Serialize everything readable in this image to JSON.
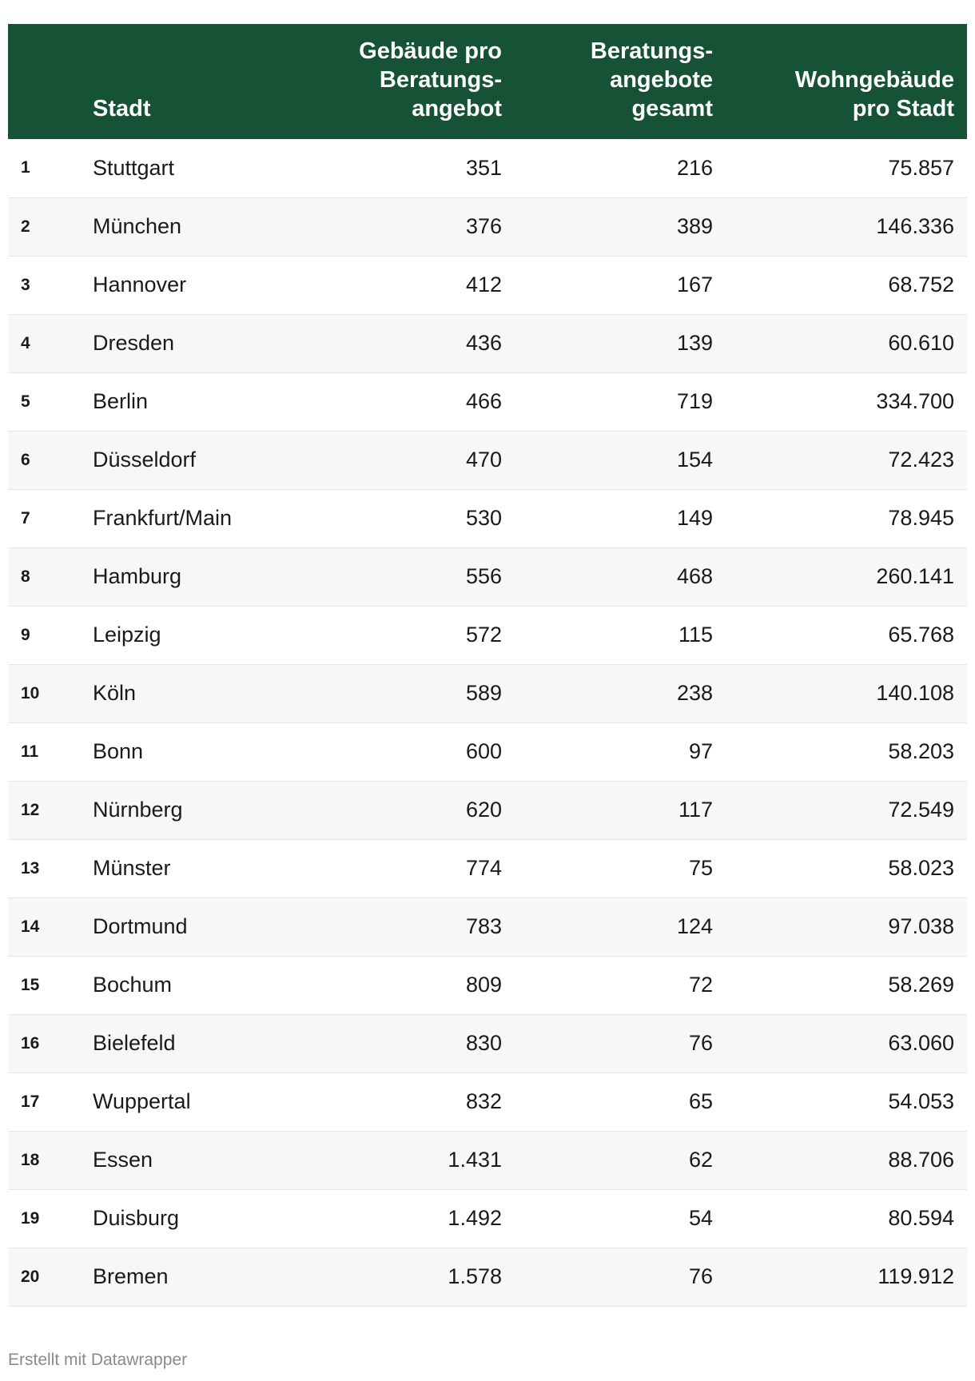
{
  "chart_data": {
    "type": "table",
    "columns": [
      "",
      "Stadt",
      "Gebäude pro\nBeratungs-\nangebot",
      "Beratungs-\nangebote\ngesamt",
      "Wohngebäude\npro Stadt"
    ],
    "rows": [
      [
        "1",
        "Stuttgart",
        "351",
        "216",
        "75.857"
      ],
      [
        "2",
        "München",
        "376",
        "389",
        "146.336"
      ],
      [
        "3",
        "Hannover",
        "412",
        "167",
        "68.752"
      ],
      [
        "4",
        "Dresden",
        "436",
        "139",
        "60.610"
      ],
      [
        "5",
        "Berlin",
        "466",
        "719",
        "334.700"
      ],
      [
        "6",
        "Düsseldorf",
        "470",
        "154",
        "72.423"
      ],
      [
        "7",
        "Frankfurt/Main",
        "530",
        "149",
        "78.945"
      ],
      [
        "8",
        "Hamburg",
        "556",
        "468",
        "260.141"
      ],
      [
        "9",
        "Leipzig",
        "572",
        "115",
        "65.768"
      ],
      [
        "10",
        "Köln",
        "589",
        "238",
        "140.108"
      ],
      [
        "11",
        "Bonn",
        "600",
        "97",
        "58.203"
      ],
      [
        "12",
        "Nürnberg",
        "620",
        "117",
        "72.549"
      ],
      [
        "13",
        "Münster",
        "774",
        "75",
        "58.023"
      ],
      [
        "14",
        "Dortmund",
        "783",
        "124",
        "97.038"
      ],
      [
        "15",
        "Bochum",
        "809",
        "72",
        "58.269"
      ],
      [
        "16",
        "Bielefeld",
        "830",
        "76",
        "63.060"
      ],
      [
        "17",
        "Wuppertal",
        "832",
        "65",
        "54.053"
      ],
      [
        "18",
        "Essen",
        "1.431",
        "62",
        "88.706"
      ],
      [
        "19",
        "Duisburg",
        "1.492",
        "54",
        "80.594"
      ],
      [
        "20",
        "Bremen",
        "1.578",
        "76",
        "119.912"
      ]
    ],
    "header_color": "#155236",
    "stripe_color": "#f7f7f7"
  },
  "footer": {
    "credit": "Erstellt mit Datawrapper"
  }
}
